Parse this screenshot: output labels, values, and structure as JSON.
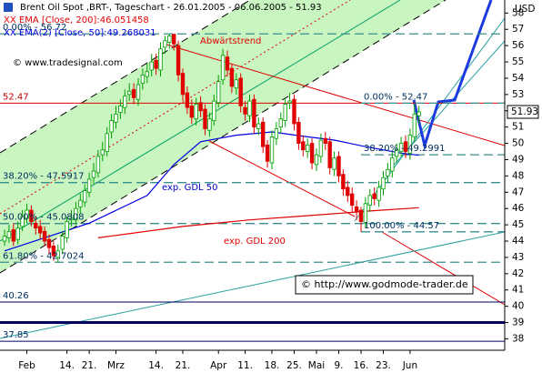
{
  "chart_data": {
    "type": "candlestick",
    "title": "Brent Oil Spot ,BRT-, Tageschart - 26.01.2005 - 06.06.2005 - 51.93",
    "source": "© www.tradesignal.com",
    "copyright": "© http://www.godmode-trader.de",
    "y_axis_label": "USD",
    "categories": [
      null,
      null,
      null,
      null,
      null,
      "Feb",
      null,
      null,
      null,
      null,
      null,
      null,
      null,
      null,
      "14.",
      null,
      null,
      null,
      null,
      "21.",
      null,
      null,
      null,
      null,
      null,
      "Mrz",
      null,
      null,
      null,
      null,
      null,
      null,
      null,
      null,
      "14.",
      null,
      null,
      null,
      null,
      null,
      "21.",
      null,
      null,
      null,
      null,
      null,
      null,
      null,
      "Apr",
      null,
      null,
      null,
      null,
      null,
      "11.",
      null,
      null,
      null,
      null,
      null,
      "18.",
      null,
      null,
      null,
      null,
      "25.",
      null,
      null,
      null,
      null,
      "Mai",
      null,
      null,
      null,
      null,
      "9.",
      null,
      null,
      null,
      null,
      "16.",
      null,
      null,
      null,
      null,
      "23.",
      null,
      null,
      null,
      null,
      null,
      "Jun",
      null,
      null
    ],
    "open": [
      44.0,
      44.2,
      44.7,
      44.1,
      44.9,
      45.4,
      45.9,
      45.1,
      44.9,
      44.6,
      44.1,
      43.7,
      43.0,
      43.5,
      44.2,
      45.3,
      45.3,
      46.1,
      46.4,
      47.0,
      47.9,
      48.2,
      49.3,
      49.5,
      50.7,
      51.3,
      51.9,
      52.2,
      53.0,
      53.3,
      52.7,
      53.7,
      54.1,
      54.5,
      55.1,
      54.5,
      55.9,
      56.2,
      56.7,
      56.0,
      54.3,
      53.1,
      52.3,
      51.5,
      52.5,
      52.1,
      50.8,
      51.4,
      52.5,
      53.9,
      55.3,
      54.6,
      53.4,
      54.0,
      52.2,
      51.7,
      52.7,
      50.9,
      51.3,
      49.9,
      48.8,
      50.3,
      51.0,
      51.4,
      52.5,
      52.7,
      51.3,
      50.1,
      49.5,
      50.0,
      48.7,
      49.2,
      50.3,
      50.1,
      48.4,
      49.2,
      48.1,
      47.3,
      46.9,
      46.1,
      45.9,
      45.1,
      46.2,
      46.9,
      46.5,
      47.2,
      48.0,
      48.3,
      49.2,
      49.5,
      50.1,
      49.4,
      50.4,
      51.7
    ],
    "high": [
      44.7,
      45.0,
      45.1,
      45.2,
      45.9,
      46.3,
      46.2,
      45.5,
      45.3,
      44.9,
      44.4,
      44.0,
      43.8,
      44.6,
      45.5,
      45.9,
      46.4,
      46.9,
      47.5,
      48.2,
      48.8,
      49.6,
      50.1,
      51.0,
      51.8,
      52.3,
      52.7,
      53.3,
      53.7,
      53.7,
      54.0,
      54.6,
      54.9,
      55.5,
      55.5,
      56.2,
      56.6,
      56.72,
      56.7,
      56.3,
      54.6,
      53.5,
      52.7,
      52.8,
      52.9,
      52.4,
      51.9,
      53.0,
      54.2,
      55.8,
      55.7,
      54.9,
      54.3,
      54.3,
      52.6,
      53.0,
      53.0,
      51.6,
      51.6,
      50.2,
      50.8,
      51.3,
      51.9,
      52.8,
      53.1,
      53.0,
      51.6,
      50.5,
      50.3,
      50.3,
      49.7,
      50.6,
      50.7,
      50.4,
      49.5,
      49.5,
      48.4,
      47.7,
      47.3,
      46.5,
      46.1,
      46.7,
      47.2,
      47.3,
      47.7,
      48.3,
      48.8,
      49.5,
      50.0,
      50.4,
      50.5,
      50.9,
      52.47,
      52.3
    ],
    "low": [
      43.7,
      43.9,
      43.7,
      43.8,
      44.6,
      45.1,
      44.9,
      44.4,
      44.1,
      43.7,
      43.2,
      42.8,
      42.7,
      43.2,
      43.9,
      44.9,
      45.0,
      45.7,
      46.1,
      46.7,
      47.5,
      47.9,
      48.9,
      49.2,
      50.3,
      50.9,
      51.5,
      51.8,
      52.6,
      52.4,
      52.3,
      53.3,
      53.7,
      54.1,
      54.2,
      54.1,
      55.5,
      55.8,
      55.7,
      53.8,
      52.6,
      51.8,
      51.2,
      51.1,
      51.6,
      50.5,
      50.4,
      51.1,
      52.2,
      53.6,
      54.1,
      53.1,
      53.0,
      51.9,
      51.4,
      51.3,
      50.6,
      50.5,
      49.4,
      48.5,
      48.4,
      49.9,
      50.6,
      51.0,
      52.1,
      50.8,
      49.6,
      49.2,
      49.1,
      48.4,
      48.3,
      48.8,
      49.6,
      48.1,
      48.0,
      47.6,
      46.8,
      46.4,
      45.8,
      45.3,
      44.57,
      44.8,
      45.8,
      46.2,
      46.1,
      46.8,
      47.6,
      47.9,
      48.8,
      49.2,
      49.1,
      49.0,
      50.1,
      51.2
    ],
    "close": [
      44.3,
      44.6,
      44.0,
      44.8,
      45.5,
      45.9,
      45.2,
      44.8,
      44.5,
      44.0,
      43.6,
      43.1,
      43.4,
      44.3,
      45.2,
      45.4,
      46.0,
      46.5,
      47.1,
      47.8,
      48.3,
      49.2,
      49.6,
      50.6,
      51.4,
      51.8,
      52.3,
      52.9,
      53.2,
      52.8,
      53.6,
      54.2,
      54.4,
      55.0,
      54.6,
      55.8,
      56.3,
      56.6,
      56.1,
      54.2,
      53.0,
      52.2,
      51.6,
      52.4,
      52.0,
      50.9,
      51.5,
      52.6,
      53.8,
      55.4,
      54.5,
      53.5,
      53.9,
      52.3,
      51.8,
      52.6,
      51.0,
      51.2,
      49.8,
      48.9,
      50.4,
      50.9,
      51.5,
      52.4,
      52.6,
      51.2,
      50.0,
      49.6,
      49.9,
      48.8,
      49.3,
      50.2,
      50.0,
      48.5,
      49.1,
      48.0,
      47.2,
      46.8,
      46.2,
      45.8,
      45.2,
      46.3,
      46.8,
      46.6,
      47.3,
      47.9,
      48.4,
      49.1,
      49.6,
      50.0,
      49.5,
      50.5,
      51.8,
      51.93
    ],
    "up_color": "#00a000",
    "down_color": "#e00000",
    "ylim": [
      37.3,
      58.8
    ],
    "yticks": [
      38,
      39,
      40,
      41,
      42,
      43,
      44,
      45,
      46,
      47,
      48,
      49,
      50,
      51,
      52,
      53,
      54,
      55,
      56,
      57,
      58
    ],
    "last": 51.93,
    "overlays": [
      {
        "name": "XX EMA [Close, 200]:46.051458",
        "color": "#e00000",
        "x": [
          21,
          40,
          55,
          70,
          82,
          93
        ],
        "values": [
          44.2,
          44.9,
          45.3,
          45.6,
          45.85,
          46.05
        ]
      },
      {
        "name": "XX EMA(2) [Close, 50]:49.268031",
        "color": "#0000e0",
        "x": [
          0,
          19,
          32,
          38,
          44,
          52,
          60,
          68,
          74,
          81,
          89,
          93
        ],
        "values": [
          43.4,
          45.1,
          46.8,
          48.7,
          50.1,
          50.5,
          50.7,
          50.4,
          50.2,
          49.8,
          49.4,
          49.27
        ]
      }
    ],
    "levels": [
      {
        "value": 56.72,
        "label": "0.00% - 56.72",
        "color": "#3a8f8f",
        "style": "dashed"
      },
      {
        "value": 52.47,
        "label": "52.47",
        "color": "#e00000",
        "style": "solid"
      },
      {
        "value": 47.5917,
        "label": "38.20% - 47.5917",
        "color": "#3a8f8f",
        "style": "dashed"
      },
      {
        "value": 45.0808,
        "label": "50.00% - 45.0808",
        "color": "#3a8f8f",
        "style": "dashed"
      },
      {
        "value": 42.7024,
        "label": "61.80% - 42.7024",
        "color": "#3a8f8f",
        "style": "dashed"
      },
      {
        "value": 40.26,
        "label": "40.26",
        "color": "#000060",
        "style": "solid"
      },
      {
        "value": 39,
        "color": "#000060",
        "style": "thick"
      },
      {
        "value": 37.85,
        "label": "37.85",
        "color": "#000060",
        "style": "solid"
      },
      {
        "value": 52.47,
        "label": "0.00% - 52.47",
        "color": "#3a8f8f",
        "style": "dashed",
        "start": 80
      },
      {
        "value": 49.2991,
        "label": "38.20% - 49.2991",
        "color": "#3a8f8f",
        "style": "dashed",
        "start": 80
      },
      {
        "value": 44.57,
        "label": "100.00% - 44.57",
        "color": "#3a8f8f",
        "style": "dashed",
        "start": 80
      }
    ],
    "annotations": [
      "Abwärtstrend",
      "exp. GDL 50",
      "exp. GDL 200"
    ]
  }
}
